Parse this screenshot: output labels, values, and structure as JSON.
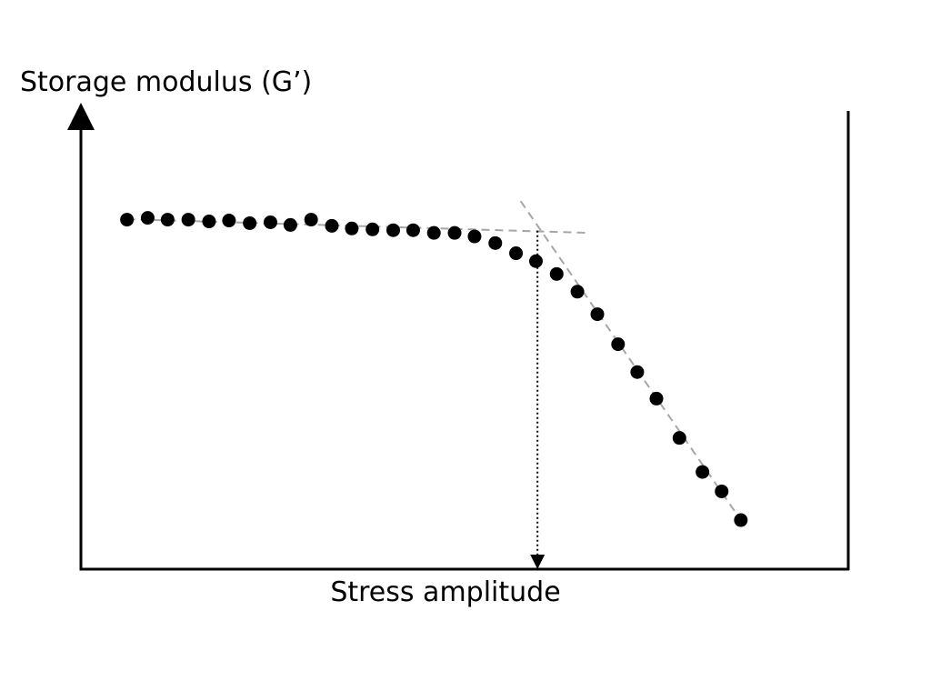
{
  "chart_data": {
    "type": "scatter",
    "title": "",
    "xlabel": "Stress amplitude",
    "ylabel": "Storage modulus (G’)",
    "xlim": [
      0,
      100
    ],
    "ylim": [
      0,
      100
    ],
    "axis_ticks": false,
    "grid": false,
    "legend": "none",
    "series": [
      {
        "x": [
          6,
          8.7,
          11.3,
          14,
          16.7,
          19.3,
          22,
          24.7,
          27.3,
          30,
          32.7,
          35.3,
          38,
          40.7,
          43.3,
          46,
          48.7,
          51.3,
          54,
          56.7,
          59.3,
          62,
          64.7,
          67.3,
          70,
          72.5,
          75,
          78,
          81,
          83.5,
          86
        ],
        "y": [
          79.1,
          79.5,
          79.1,
          79.1,
          78.7,
          78.9,
          78.3,
          78.5,
          77.9,
          79.1,
          77.7,
          77.1,
          76.9,
          76.7,
          76.7,
          76.1,
          76.1,
          75.3,
          73.8,
          71.5,
          69.7,
          66.8,
          62.8,
          57.7,
          50.9,
          44.6,
          38.6,
          29.7,
          22.0,
          17.6,
          11.1
        ]
      }
    ],
    "annotations": {
      "fit_lines": [
        {
          "style": "dashed",
          "color": "#a6a6a6",
          "from": [
            6,
            79.2
          ],
          "to": [
            66.4,
            76.1
          ]
        },
        {
          "style": "dashed",
          "color": "#a6a6a6",
          "from": [
            57.3,
            83.3
          ],
          "to": [
            86,
            11.1
          ]
        }
      ],
      "crossover": {
        "x": 59.5,
        "y": 76.6
      },
      "drop_arrow": {
        "style": "dotted",
        "color": "#000000",
        "x": 59.5,
        "from_y": 76.6,
        "to_y": 0
      }
    },
    "colors": {
      "points": "#000000",
      "axes": "#000000",
      "fit_lines": "#a6a6a6"
    }
  }
}
